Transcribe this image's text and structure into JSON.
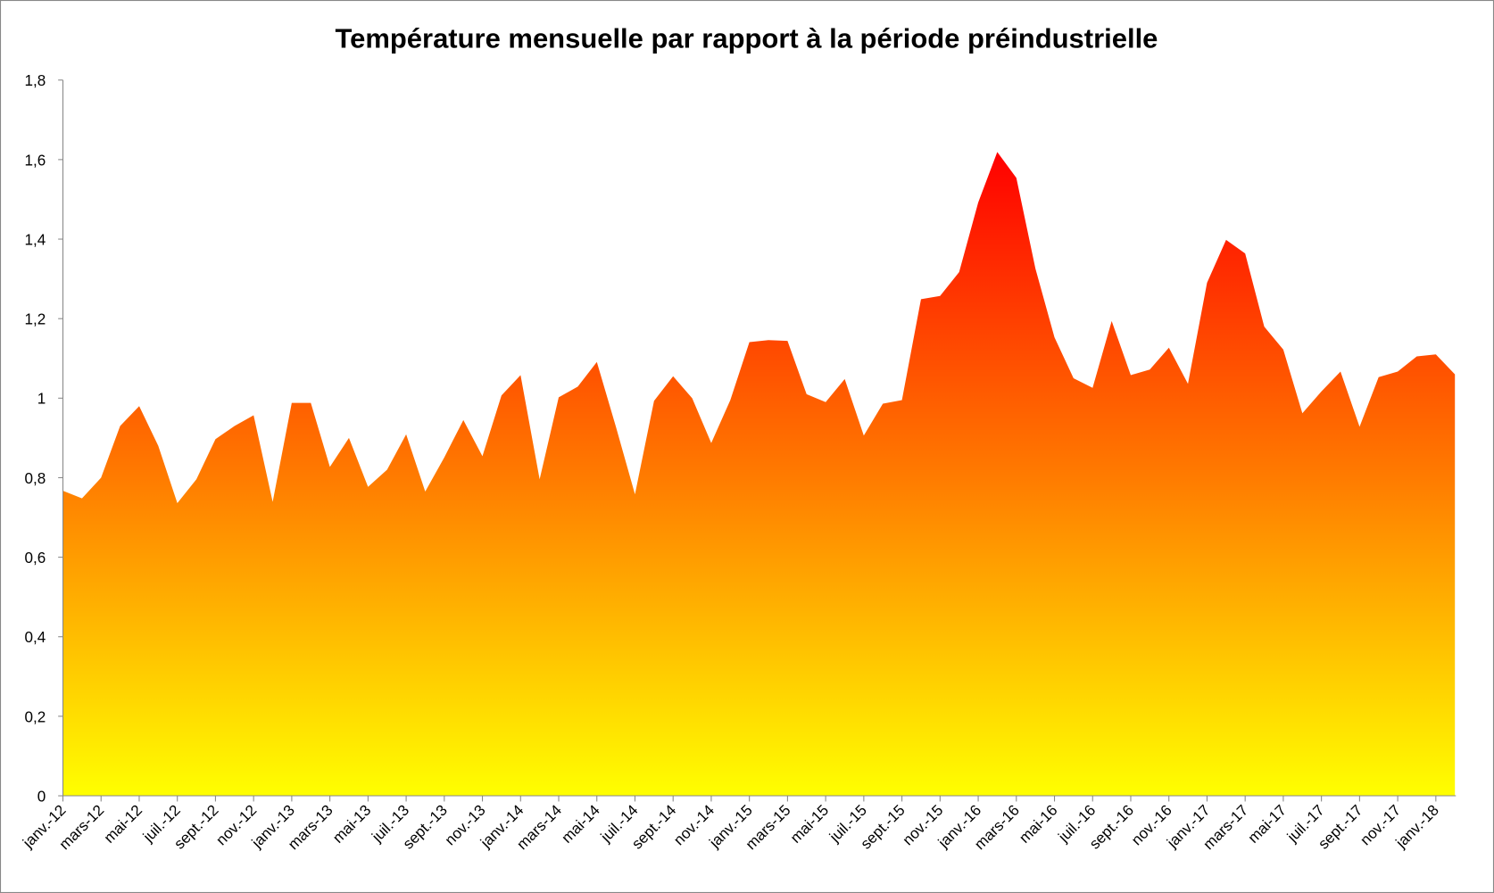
{
  "chart_data": {
    "type": "area",
    "title": "Température mensuelle par rapport à la période préindustrielle",
    "xlabel": "",
    "ylabel": "",
    "ylim": [
      0,
      1.8
    ],
    "yticks": [
      "0",
      "0,2",
      "0,4",
      "0,6",
      "0,8",
      "1",
      "1,2",
      "1,4",
      "1,6",
      "1,8"
    ],
    "grid": false,
    "legend": "none",
    "colors": {
      "top": "#ff0000",
      "middle": "#ff7a00",
      "bottom": "#ffff00"
    },
    "x_tick_labels": [
      "janv.-12",
      "mars-12",
      "mai-12",
      "juil.-12",
      "sept.-12",
      "nov.-12",
      "janv.-13",
      "mars-13",
      "mai-13",
      "juil.-13",
      "sept.-13",
      "nov.-13",
      "janv.-14",
      "mars-14",
      "mai-14",
      "juil.-14",
      "sept.-14",
      "nov.-14",
      "janv.-15",
      "mars-15",
      "mai-15",
      "juil.-15",
      "sept.-15",
      "nov.-15",
      "janv.-16",
      "mars-16",
      "mai-16",
      "juil.-16",
      "sept.-16",
      "nov.-16",
      "janv.-17",
      "mars-17",
      "mai-17",
      "juil.-17",
      "sept.-17",
      "nov.-17",
      "janv.-18"
    ],
    "x_start": "janv.-12",
    "x_end": "févr.-18",
    "values": [
      0.767,
      0.748,
      0.8,
      0.93,
      0.98,
      0.88,
      0.736,
      0.796,
      0.897,
      0.93,
      0.957,
      0.739,
      0.988,
      0.988,
      0.827,
      0.9,
      0.777,
      0.82,
      0.909,
      0.765,
      0.851,
      0.945,
      0.854,
      1.007,
      1.058,
      0.796,
      1.002,
      1.029,
      1.091,
      0.928,
      0.758,
      0.993,
      1.055,
      1.0,
      0.887,
      0.995,
      1.141,
      1.146,
      1.144,
      1.01,
      0.99,
      1.048,
      0.906,
      0.986,
      0.995,
      1.249,
      1.257,
      1.317,
      1.492,
      1.619,
      1.554,
      1.326,
      1.153,
      1.05,
      1.026,
      1.194,
      1.058,
      1.072,
      1.127,
      1.036,
      1.29,
      1.398,
      1.364,
      1.18,
      1.122,
      0.962,
      1.017,
      1.067,
      0.928,
      1.053,
      1.067,
      1.105,
      1.11,
      1.06
    ]
  }
}
